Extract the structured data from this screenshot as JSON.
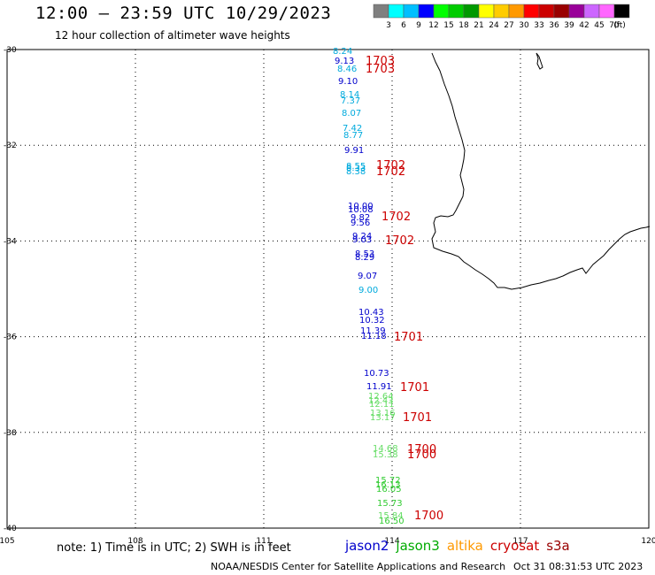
{
  "header": {
    "title": "12:00 – 23:59 UTC 10/29/2023",
    "subtitle": "12 hour collection of altimeter wave heights"
  },
  "colorbar": {
    "colors": [
      "#7f7f7f",
      "#00ffff",
      "#00bfff",
      "#0000ff",
      "#00ff00",
      "#00cc00",
      "#009900",
      "#ffff00",
      "#ffcc00",
      "#ff9900",
      "#ff0000",
      "#cc0000",
      "#990000",
      "#990099",
      "#cc66ff",
      "#ff66ff",
      "#000000"
    ],
    "labels": [
      "3",
      "6",
      "9",
      "12",
      "15",
      "18",
      "21",
      "24",
      "27",
      "30",
      "33",
      "36",
      "39",
      "42",
      "45",
      "70"
    ],
    "unit": "(ft)"
  },
  "axes": {
    "lon_ticks": [
      "105",
      "108",
      "111",
      "114",
      "117",
      "120"
    ],
    "lat_ticks": [
      "-30",
      "-32",
      "-34",
      "-36",
      "-38",
      "-40"
    ]
  },
  "satellite_colors": {
    "jason2": "#0000cc",
    "jason3": "#00aa00",
    "altika": "#ff9900",
    "cryosat": "#cc0000",
    "s3a": "#990000",
    "cyan": "#00aadd",
    "green": "#33cc33",
    "lightgreen": "#66dd66"
  },
  "swh_labels": [
    {
      "text": "8.24",
      "color": "cyan"
    },
    {
      "text": "9.13",
      "color": "jason2"
    },
    {
      "text": "8.46",
      "color": "cyan"
    },
    {
      "text": "9.10",
      "color": "jason2"
    },
    {
      "text": "8.14",
      "color": "cyan"
    },
    {
      "text": "7.37",
      "color": "cyan"
    },
    {
      "text": "8.07",
      "color": "cyan"
    },
    {
      "text": "7.42",
      "color": "cyan"
    },
    {
      "text": "8.77",
      "color": "cyan"
    },
    {
      "text": "9.91",
      "color": "jason2"
    },
    {
      "text": "8.55",
      "color": "cyan"
    },
    {
      "text": "8.33",
      "color": "cyan"
    },
    {
      "text": "8.38",
      "color": "cyan"
    },
    {
      "text": "10.00",
      "color": "jason2"
    },
    {
      "text": "10.08",
      "color": "jason2"
    },
    {
      "text": "9.82",
      "color": "jason2"
    },
    {
      "text": "9.56",
      "color": "jason2"
    },
    {
      "text": "9.24",
      "color": "jason2"
    },
    {
      "text": "9.03",
      "color": "jason2"
    },
    {
      "text": "8.53",
      "color": "jason2"
    },
    {
      "text": "8.29",
      "color": "jason2"
    },
    {
      "text": "9.07",
      "color": "jason2"
    },
    {
      "text": "9.00",
      "color": "cyan"
    },
    {
      "text": "10.43",
      "color": "jason2"
    },
    {
      "text": "10.32",
      "color": "jason2"
    },
    {
      "text": "11.39",
      "color": "jason2"
    },
    {
      "text": "11.18",
      "color": "jason2"
    },
    {
      "text": "10.73",
      "color": "jason2"
    },
    {
      "text": "11.91",
      "color": "jason2"
    },
    {
      "text": "12.64",
      "color": "lightgreen"
    },
    {
      "text": "12.43",
      "color": "lightgreen"
    },
    {
      "text": "12.11",
      "color": "lightgreen"
    },
    {
      "text": "13.16",
      "color": "lightgreen"
    },
    {
      "text": "13.17",
      "color": "lightgreen"
    },
    {
      "text": "14.68",
      "color": "lightgreen"
    },
    {
      "text": "15.38",
      "color": "lightgreen"
    },
    {
      "text": "15.72",
      "color": "green"
    },
    {
      "text": "16.13",
      "color": "green"
    },
    {
      "text": "16.05",
      "color": "green"
    },
    {
      "text": "15.73",
      "color": "green"
    },
    {
      "text": "15.84",
      "color": "lightgreen"
    },
    {
      "text": "16.50",
      "color": "green"
    }
  ],
  "time_labels": [
    {
      "text": "1703",
      "color": "cryosat"
    },
    {
      "text": "1703",
      "color": "cryosat"
    },
    {
      "text": "1702",
      "color": "cryosat"
    },
    {
      "text": "1702",
      "color": "cryosat"
    },
    {
      "text": "1702",
      "color": "cryosat"
    },
    {
      "text": "1702",
      "color": "cryosat"
    },
    {
      "text": "1701",
      "color": "cryosat"
    },
    {
      "text": "1701",
      "color": "cryosat"
    },
    {
      "text": "1701",
      "color": "cryosat"
    },
    {
      "text": "1700",
      "color": "cryosat"
    },
    {
      "text": "1700",
      "color": "cryosat"
    },
    {
      "text": "1700",
      "color": "cryosat"
    }
  ],
  "footer": {
    "note": "note:  1) Time is in UTC; 2) SWH is in feet",
    "legend": [
      {
        "name": "jason2",
        "color": "jason2"
      },
      {
        "name": "jason3",
        "color": "jason3"
      },
      {
        "name": "altika",
        "color": "altika"
      },
      {
        "name": "cryosat",
        "color": "cryosat"
      },
      {
        "name": "s3a",
        "color": "s3a"
      }
    ],
    "credit": "NOAA/NESDIS Center for Satellite Applications and Research",
    "timestamp": "Oct 31 08:31:53 UTC 2023"
  }
}
